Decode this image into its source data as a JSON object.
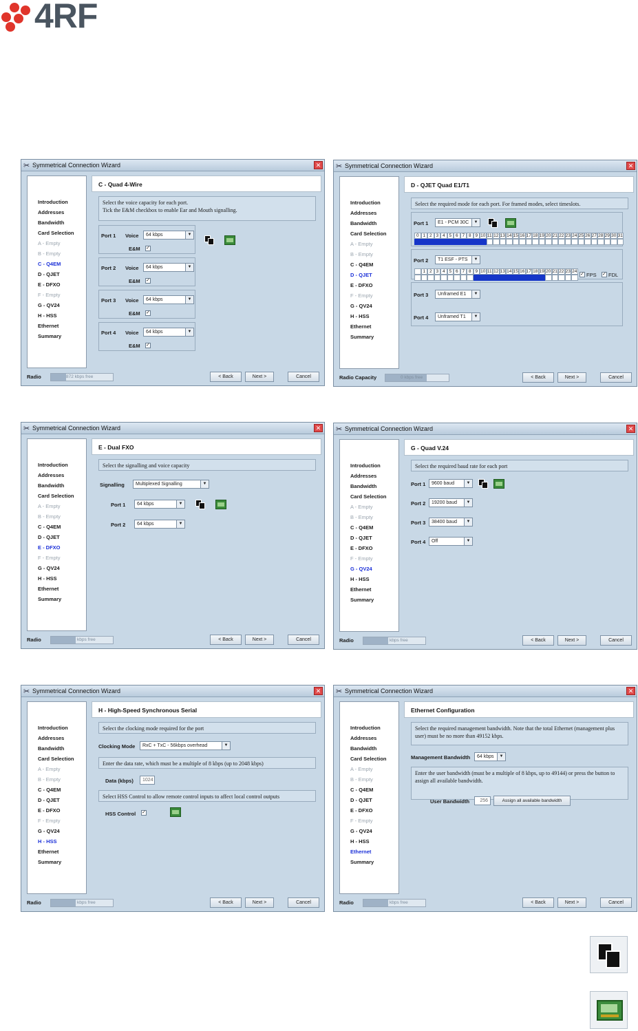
{
  "logo": {
    "text": "4RF"
  },
  "nav_items": [
    "Introduction",
    "Addresses",
    "Bandwidth",
    "Card Selection",
    "A - Empty",
    "B - Empty",
    "C - Q4EM",
    "D - QJET",
    "E - DFXO",
    "F - Empty",
    "G - QV24",
    "H - HSS",
    "Ethernet",
    "Summary"
  ],
  "wizard_title": "Symmetrical Connection Wizard",
  "buttons": {
    "back": "< Back",
    "next": "Next >",
    "cancel": "Cancel"
  },
  "w1": {
    "header": "C - Quad 4-Wire",
    "desc_line1": "Select the voice capacity for each port.",
    "desc_line2": "Tick the E&M checkbox to enable Ear and Mouth signalling.",
    "ports": [
      {
        "label": "Port 1",
        "voice_label": "Voice",
        "voice": "64 kbps",
        "em_label": "E&M",
        "em": "✓"
      },
      {
        "label": "Port 2",
        "voice_label": "Voice",
        "voice": "64 kbps",
        "em_label": "E&M",
        "em": "✓"
      },
      {
        "label": "Port 3",
        "voice_label": "Voice",
        "voice": "64 kbps",
        "em_label": "E&M",
        "em": "✓"
      },
      {
        "label": "Port 4",
        "voice_label": "Voice",
        "voice": "64 kbps",
        "em_label": "E&M",
        "em": "✓"
      }
    ],
    "bottom_label": "Radio",
    "capacity": "872 kbps free"
  },
  "w2": {
    "header": "D - QJET Quad E1/T1",
    "desc": "Select the required mode for each port. For framed modes, select timeslots.",
    "port1_label": "Port 1",
    "port1_mode": "E1 - PCM 30C",
    "port1_slots": [
      "0",
      "1",
      "2",
      "3",
      "4",
      "5",
      "6",
      "7",
      "8",
      "9",
      "10",
      "11",
      "12",
      "13",
      "14",
      "15",
      "16",
      "17",
      "18",
      "19",
      "20",
      "21",
      "22",
      "23",
      "24",
      "25",
      "26",
      "27",
      "28",
      "29",
      "30",
      "31"
    ],
    "port1_selected_count": 11,
    "port2_label": "Port 2",
    "port2_mode": "T1 ESF - PTS",
    "port2_slots": [
      "",
      "1",
      "2",
      "3",
      "4",
      "5",
      "6",
      "7",
      "8",
      "9",
      "10",
      "11",
      "12",
      "13",
      "14",
      "15",
      "16",
      "17",
      "18",
      "19",
      "20",
      "21",
      "22",
      "23",
      "24"
    ],
    "port2_selected_start": 9,
    "port2_selected_end": 19,
    "fps_label": "FPS",
    "fdl_label": "FDL",
    "fps": "✓",
    "fdl": "✓",
    "port3_label": "Port 3",
    "port3_mode": "Unframed E1",
    "port4_label": "Port 4",
    "port4_mode": "Unframed T1",
    "bottom_label": "Radio Capacity",
    "capacity": "0 kbps free"
  },
  "w3": {
    "header": "E - Dual FXO",
    "desc": "Select the signalling and voice capacity",
    "signalling_label": "Signalling",
    "signalling": "Multiplexed Signalling",
    "port1_label": "Port 1",
    "port1": "64 kbps",
    "port2_label": "Port 2",
    "port2": "64 kbps",
    "bottom_label": "Radio",
    "capacity": "kbps free"
  },
  "w4": {
    "header": "G - Quad V.24",
    "desc": "Select the required baud rate for each port",
    "ports": [
      {
        "label": "Port 1",
        "value": "9600 baud"
      },
      {
        "label": "Port 2",
        "value": "19200 baud"
      },
      {
        "label": "Port 3",
        "value": "38400 baud"
      },
      {
        "label": "Port 4",
        "value": "Off"
      }
    ],
    "bottom_label": "Radio",
    "capacity": "kbps free"
  },
  "w5": {
    "header": "H - High-Speed Synchronous Serial",
    "desc1": "Select the clocking mode required for the port",
    "clock_label": "Clocking Mode",
    "clock": "RxC + TxC - 56kbps overhead",
    "desc2": "Enter the data rate, which must be a multiple of 8 kbps (up to 2048 kbps)",
    "data_label": "Data (kbps)",
    "data": "1024",
    "desc3": "Select HSS Control to allow remote control inputs to affect local control outputs",
    "hss_label": "HSS Control",
    "hss": "✓",
    "bottom_label": "Radio",
    "capacity": "kbps free"
  },
  "w6": {
    "header": "Ethernet Configuration",
    "desc1": "Select the required management bandwidth. Note that the total Ethernet (management plus user) must be no more than 49152 kbps.",
    "mgmt_label": "Management Bandwidth",
    "mgmt": "64 kbps",
    "desc2": "Enter the user bandwidth (must be a multiple of 8 kbps, up to 49144) or press the button to assign all available bandwidth.",
    "user_label": "User Bandwidth",
    "user": "256",
    "assign_label": "Assign all available bandwidth",
    "bottom_label": "Radio",
    "capacity": "kbps free"
  }
}
